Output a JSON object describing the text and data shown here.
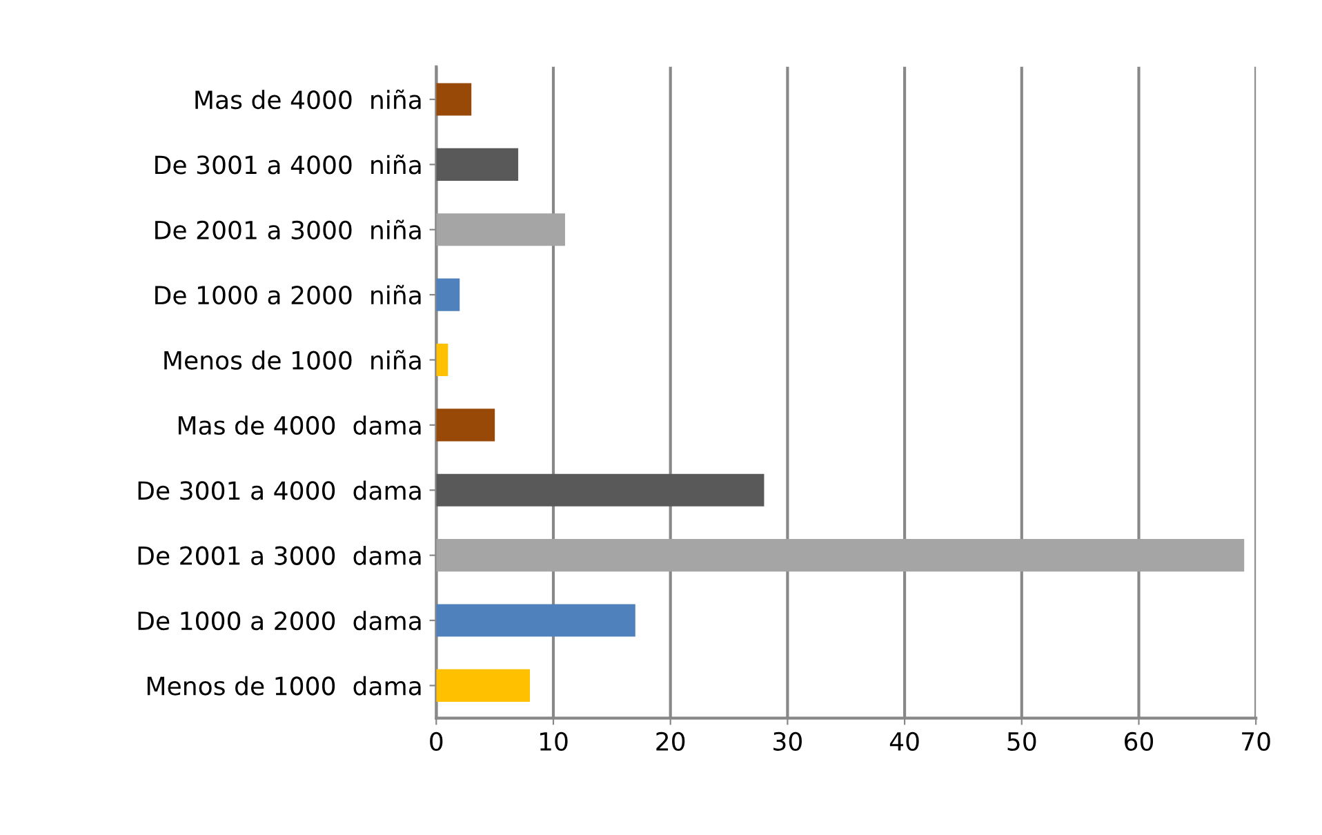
{
  "chart_data": {
    "type": "bar",
    "orientation": "horizontal",
    "categories": [
      "Mas de 4000  niña",
      "De 3001 a 4000  niña",
      "De 2001 a 3000  niña",
      "De 1000 a 2000  niña",
      "Menos de 1000  niña",
      "Mas de 4000  dama",
      "De 3001 a 4000  dama",
      "De 2001 a 3000  dama",
      "De 1000 a 2000  dama",
      "Menos de 1000  dama"
    ],
    "values": [
      3,
      7,
      11,
      2,
      1,
      5,
      28,
      69,
      17,
      8
    ],
    "colors": [
      "#984807",
      "#595959",
      "#a5a5a5",
      "#4f81bd",
      "#ffc000",
      "#984807",
      "#595959",
      "#a5a5a5",
      "#4f81bd",
      "#ffc000"
    ],
    "xlim": [
      0,
      70
    ],
    "xticks": [
      0,
      10,
      20,
      30,
      40,
      50,
      60,
      70
    ],
    "grid": "x",
    "legend": false
  }
}
